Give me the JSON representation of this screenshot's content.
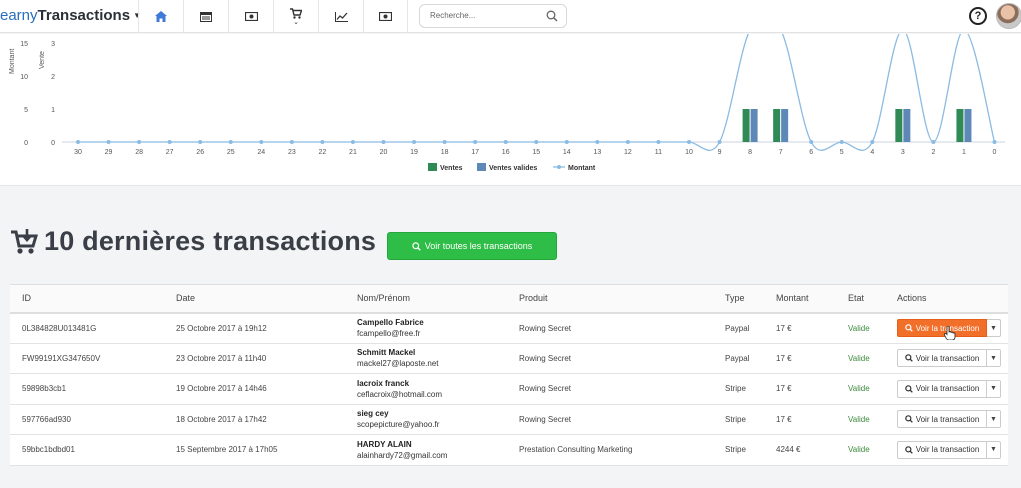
{
  "brand": {
    "part1": "earny",
    "part2": "Transactions"
  },
  "nav_icons": [
    "home-icon",
    "calendar-icon",
    "money-icon",
    "cart-icon",
    "chart-line-icon",
    "cash-icon"
  ],
  "search": {
    "placeholder": "Recherche..."
  },
  "help": "?",
  "chart_data": {
    "type": "bar",
    "categories": [
      "30",
      "29",
      "28",
      "27",
      "26",
      "25",
      "24",
      "23",
      "22",
      "21",
      "20",
      "19",
      "18",
      "17",
      "16",
      "15",
      "14",
      "13",
      "12",
      "11",
      "10",
      "9",
      "8",
      "7",
      "6",
      "5",
      "4",
      "3",
      "2",
      "1",
      "0"
    ],
    "series": [
      {
        "name": "Ventes",
        "color": "#2f8a56",
        "values": [
          0,
          0,
          0,
          0,
          0,
          0,
          0,
          0,
          0,
          0,
          0,
          0,
          0,
          0,
          0,
          0,
          0,
          0,
          0,
          0,
          0,
          0,
          1,
          1,
          0,
          0,
          0,
          1,
          0,
          1,
          0
        ]
      },
      {
        "name": "Ventes valides",
        "color": "#5d88b8",
        "values": [
          0,
          0,
          0,
          0,
          0,
          0,
          0,
          0,
          0,
          0,
          0,
          0,
          0,
          0,
          0,
          0,
          0,
          0,
          0,
          0,
          0,
          0,
          1,
          1,
          0,
          0,
          0,
          1,
          0,
          1,
          0
        ]
      },
      {
        "name": "Montant",
        "type": "line",
        "color": "#8bbbe2",
        "values": [
          0,
          0,
          0,
          0,
          0,
          0,
          0,
          0,
          0,
          0,
          0,
          0,
          0,
          0,
          0,
          0,
          0,
          0,
          0,
          0,
          0,
          0,
          17,
          17,
          0,
          0,
          0,
          17,
          0,
          17,
          0
        ]
      }
    ],
    "y_left_label": "Vente",
    "y_left_ticks": [
      "0",
      "1",
      "2",
      "3"
    ],
    "y_right_label": "Montant",
    "y_right_ticks": [
      "0",
      "5",
      "10",
      "15"
    ],
    "ylim": [
      0,
      3
    ],
    "ylim_montant": [
      0,
      15
    ]
  },
  "section": {
    "title": "10 dernières transactions",
    "button": "Voir toutes les transactions"
  },
  "table": {
    "headers": [
      "ID",
      "Date",
      "Nom/Prénom",
      "Produit",
      "Type",
      "Montant",
      "Etat",
      "Actions"
    ],
    "action_label": "Voir la transaction",
    "rows": [
      {
        "id": "0L384828U013481G",
        "date": "25 Octobre 2017 à 19h12",
        "name": "Campello Fabrice",
        "email": "fcampello@free.fr",
        "product": "Rowing Secret",
        "type": "Paypal",
        "amount": "17 €",
        "state": "Valide"
      },
      {
        "id": "FW99191XG347650V",
        "date": "23 Octobre 2017 à 11h40",
        "name": "Schmitt Mackel",
        "email": "mackel27@laposte.net",
        "product": "Rowing Secret",
        "type": "Paypal",
        "amount": "17 €",
        "state": "Valide"
      },
      {
        "id": "59898b3cb1",
        "date": "19 Octobre 2017 à 14h46",
        "name": "lacroix franck",
        "email": "ceflacroix@hotmail.com",
        "product": "Rowing Secret",
        "type": "Stripe",
        "amount": "17 €",
        "state": "Valide"
      },
      {
        "id": "597766ad930",
        "date": "18 Octobre 2017 à 17h42",
        "name": "sieg cey",
        "email": "scopepicture@yahoo.fr",
        "product": "Rowing Secret",
        "type": "Stripe",
        "amount": "17 €",
        "state": "Valide"
      },
      {
        "id": "59bbc1bdbd01",
        "date": "15 Septembre 2017 à 17h05",
        "name": "HARDY ALAIN",
        "email": "alainhardy72@gmail.com",
        "product": "Prestation Consulting Marketing",
        "type": "Stripe",
        "amount": "4244 €",
        "state": "Valide"
      }
    ]
  }
}
